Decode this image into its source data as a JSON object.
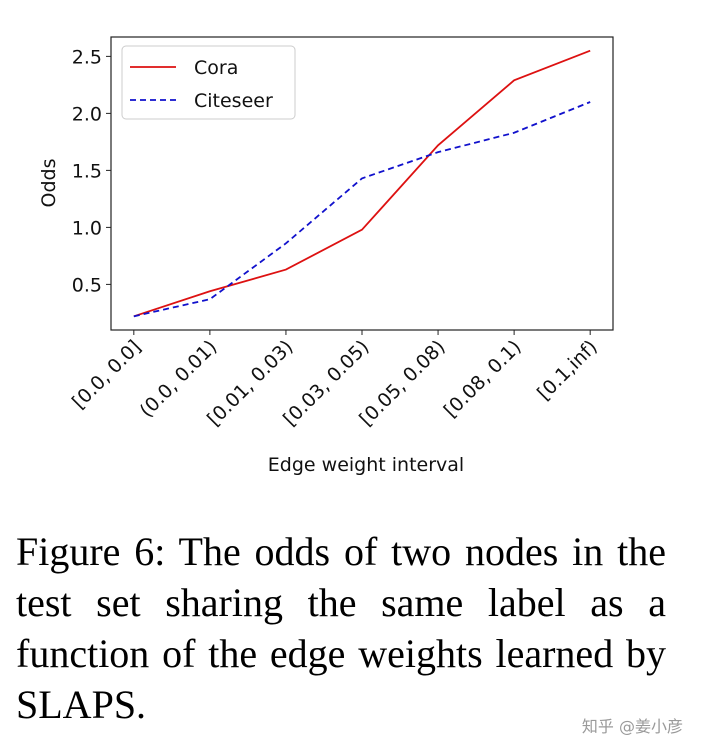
{
  "chart_data": {
    "type": "line",
    "title": "",
    "xlabel": "Edge weight interval",
    "ylabel": "Odds",
    "categories": [
      "[0.0, 0.0]",
      "(0.0, 0.01)",
      "[0.01, 0.03)",
      "[0.03, 0.05)",
      "[0.05, 0.08)",
      "[0.08, 0.1)",
      "[0.1,inf)"
    ],
    "yticks": [
      0.5,
      1.0,
      1.5,
      2.0,
      2.5
    ],
    "ytick_labels": [
      "0.5",
      "1.0",
      "1.5",
      "2.0",
      "2.5"
    ],
    "ylim": [
      0.1,
      2.67
    ],
    "grid": false,
    "legend_position": "top-left",
    "series": [
      {
        "name": "Cora",
        "color": "#dd1111",
        "style": "solid",
        "values": [
          0.22,
          0.44,
          0.63,
          0.98,
          1.72,
          2.29,
          2.55
        ]
      },
      {
        "name": "Citeseer",
        "color": "#1111cc",
        "style": "dashed",
        "values": [
          0.22,
          0.37,
          0.86,
          1.43,
          1.66,
          1.83,
          2.1
        ]
      }
    ]
  },
  "caption": "Figure 6: The odds of two nodes in the test set sharing the same label as a function of the edge weights learned by SLAPS.",
  "watermark": "知乎 @姜小彦"
}
